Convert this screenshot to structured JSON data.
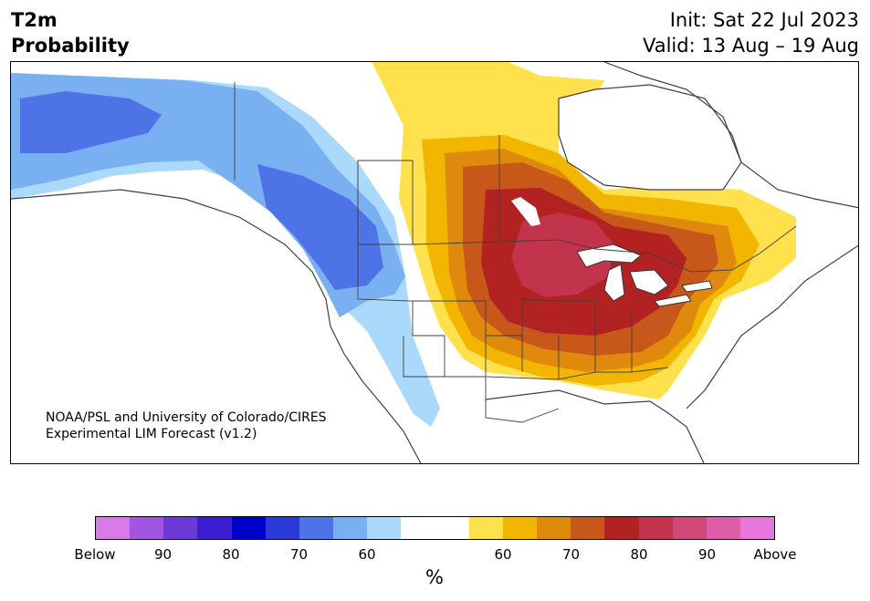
{
  "header": {
    "variable": "T2m",
    "product": "Probability",
    "init": "Init: Sat 22 Jul 2023",
    "valid": "Valid: 13 Aug – 19 Aug"
  },
  "map": {
    "credit_line1": "NOAA/PSL and University of Colorado/CIRES",
    "credit_line2": "Experimental LIM Forecast (v1.2)"
  },
  "colorbar": {
    "bins": [
      "#d97ae9",
      "#a155e0",
      "#6b3ad8",
      "#3a1ecf",
      "#0000c8",
      "#2a3ad6",
      "#4e73e6",
      "#78b0f2",
      "#aad9fb",
      "#ffffff",
      "#ffffff",
      "#ffe04d",
      "#f2b600",
      "#e08a0d",
      "#c8571a",
      "#b22222",
      "#c2344b",
      "#cf4a78",
      "#dc5ea8",
      "#e877dc"
    ],
    "ticks": [
      "Below",
      "90",
      "80",
      "70",
      "60",
      "60",
      "70",
      "80",
      "90",
      "Above"
    ],
    "unit": "%"
  }
}
